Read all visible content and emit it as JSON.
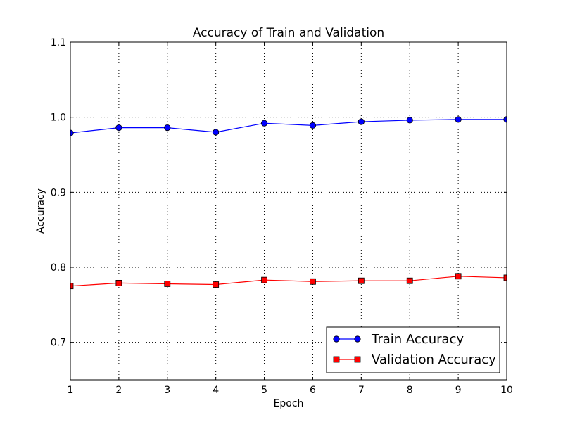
{
  "chart_data": {
    "type": "line",
    "title": "Accuracy of Train and Validation",
    "xlabel": "Epoch",
    "ylabel": "Accuracy",
    "xlim": [
      1,
      10
    ],
    "ylim": [
      0.65,
      1.1
    ],
    "xticks": [
      "1",
      "2",
      "3",
      "4",
      "5",
      "6",
      "7",
      "8",
      "9",
      "10"
    ],
    "yticks": [
      "0.7",
      "0.8",
      "0.9",
      "1.0",
      "1.1"
    ],
    "grid": true,
    "legend_position": "lower-right",
    "x": [
      1,
      2,
      3,
      4,
      5,
      6,
      7,
      8,
      9,
      10
    ],
    "series": [
      {
        "name": "Train Accuracy",
        "color": "#0000ff",
        "marker": "circle",
        "values": [
          0.979,
          0.986,
          0.986,
          0.98,
          0.992,
          0.989,
          0.994,
          0.996,
          0.997,
          0.997
        ]
      },
      {
        "name": "Validation Accuracy",
        "color": "#ff0000",
        "marker": "square",
        "values": [
          0.775,
          0.779,
          0.778,
          0.777,
          0.783,
          0.781,
          0.782,
          0.782,
          0.788,
          0.786
        ]
      }
    ]
  }
}
